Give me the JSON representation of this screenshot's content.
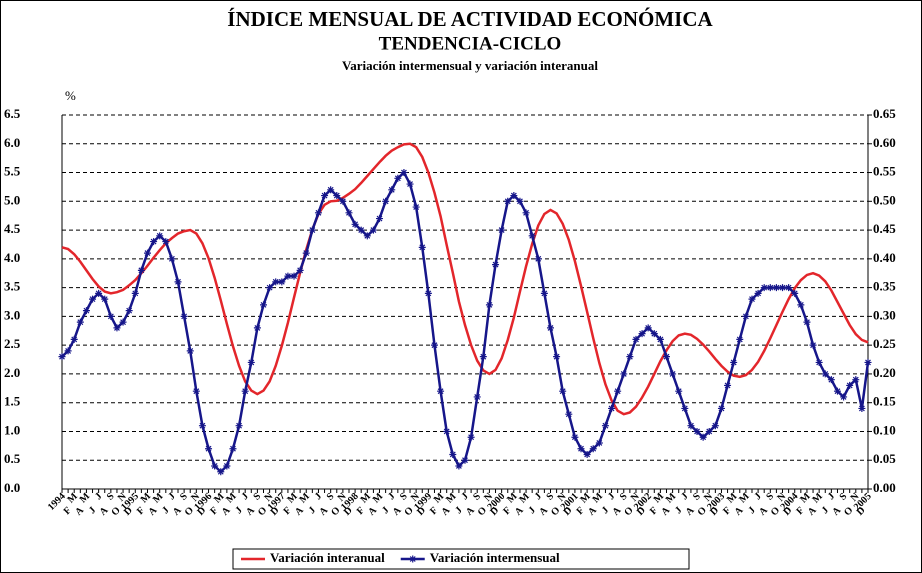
{
  "chart_data": {
    "type": "line",
    "title": "ÍNDICE MENSUAL DE ACTIVIDAD ECONÓMICA",
    "subtitle": "TENDENCIA-CICLO",
    "caption": "Variación intermensual y variación interanual",
    "ylabel": "%",
    "categories": [
      "1994",
      "F",
      "M",
      "A",
      "M",
      "J",
      "J",
      "A",
      "S",
      "O",
      "N",
      "D",
      "1995",
      "F",
      "M",
      "A",
      "M",
      "J",
      "J",
      "A",
      "S",
      "O",
      "N",
      "D",
      "1996",
      "F",
      "M",
      "A",
      "M",
      "J",
      "J",
      "A",
      "S",
      "O",
      "N",
      "D",
      "1997",
      "F",
      "M",
      "A",
      "M",
      "J",
      "J",
      "A",
      "S",
      "O",
      "N",
      "D",
      "1998",
      "F",
      "M",
      "A",
      "M",
      "J",
      "J",
      "A",
      "S",
      "O",
      "N",
      "D",
      "1999",
      "F",
      "M",
      "A",
      "M",
      "J",
      "J",
      "A",
      "S",
      "O",
      "N",
      "D",
      "2000",
      "F",
      "M",
      "A",
      "M",
      "J",
      "J",
      "A",
      "S",
      "O",
      "N",
      "D",
      "2001",
      "F",
      "M",
      "A",
      "M",
      "J",
      "J",
      "A",
      "S",
      "O",
      "N",
      "D",
      "2002",
      "F",
      "M",
      "A",
      "M",
      "J",
      "J",
      "A",
      "S",
      "O",
      "N",
      "D",
      "2003",
      "F",
      "M",
      "A",
      "M",
      "J",
      "J",
      "A",
      "S",
      "O",
      "N",
      "D",
      "2004",
      "F",
      "M",
      "A",
      "M",
      "J",
      "J",
      "A",
      "S",
      "O",
      "N",
      "D",
      "2005"
    ],
    "series": [
      {
        "name": "Variación interanual",
        "color": "#e3262b",
        "axis": "y",
        "values": [
          4.2,
          4.17,
          4.08,
          3.95,
          3.8,
          3.65,
          3.52,
          3.43,
          3.4,
          3.42,
          3.46,
          3.54,
          3.63,
          3.75,
          3.88,
          4.02,
          4.15,
          4.27,
          4.36,
          4.44,
          4.48,
          4.5,
          4.44,
          4.27,
          4.01,
          3.67,
          3.28,
          2.87,
          2.48,
          2.14,
          1.87,
          1.71,
          1.65,
          1.71,
          1.87,
          2.14,
          2.49,
          2.89,
          3.33,
          3.76,
          4.16,
          4.51,
          4.78,
          4.94,
          5.0,
          5.01,
          5.06,
          5.13,
          5.21,
          5.32,
          5.44,
          5.56,
          5.68,
          5.79,
          5.88,
          5.94,
          5.99,
          6.0,
          5.94,
          5.77,
          5.5,
          5.15,
          4.74,
          4.24,
          3.76,
          3.26,
          2.85,
          2.5,
          2.23,
          2.06,
          2.0,
          2.07,
          2.27,
          2.59,
          2.98,
          3.43,
          3.87,
          4.26,
          4.58,
          4.78,
          4.85,
          4.79,
          4.61,
          4.33,
          3.96,
          3.53,
          3.08,
          2.62,
          2.19,
          1.82,
          1.54,
          1.36,
          1.3,
          1.33,
          1.43,
          1.59,
          1.78,
          2.0,
          2.22,
          2.41,
          2.57,
          2.67,
          2.7,
          2.68,
          2.61,
          2.51,
          2.39,
          2.26,
          2.14,
          2.04,
          1.97,
          1.95,
          1.98,
          2.07,
          2.21,
          2.4,
          2.62,
          2.85,
          3.08,
          3.3,
          3.49,
          3.63,
          3.72,
          3.75,
          3.71,
          3.61,
          3.45,
          3.25,
          3.05,
          2.85,
          2.69,
          2.59,
          2.55
        ]
      },
      {
        "name": "Variación intermensual",
        "color": "#16168a",
        "axis": "y2",
        "values": [
          0.23,
          0.24,
          0.26,
          0.29,
          0.31,
          0.33,
          0.34,
          0.33,
          0.3,
          0.28,
          0.29,
          0.31,
          0.34,
          0.38,
          0.41,
          0.43,
          0.44,
          0.43,
          0.4,
          0.36,
          0.3,
          0.24,
          0.17,
          0.11,
          0.07,
          0.04,
          0.03,
          0.04,
          0.07,
          0.11,
          0.17,
          0.22,
          0.28,
          0.32,
          0.35,
          0.36,
          0.36,
          0.37,
          0.37,
          0.38,
          0.41,
          0.45,
          0.48,
          0.51,
          0.52,
          0.51,
          0.5,
          0.48,
          0.46,
          0.45,
          0.44,
          0.45,
          0.47,
          0.5,
          0.52,
          0.54,
          0.55,
          0.53,
          0.49,
          0.42,
          0.34,
          0.25,
          0.17,
          0.1,
          0.06,
          0.04,
          0.05,
          0.09,
          0.16,
          0.23,
          0.32,
          0.39,
          0.45,
          0.5,
          0.51,
          0.5,
          0.48,
          0.44,
          0.4,
          0.34,
          0.28,
          0.23,
          0.17,
          0.13,
          0.09,
          0.07,
          0.06,
          0.07,
          0.08,
          0.11,
          0.14,
          0.17,
          0.2,
          0.23,
          0.26,
          0.27,
          0.28,
          0.27,
          0.26,
          0.23,
          0.2,
          0.17,
          0.14,
          0.11,
          0.1,
          0.09,
          0.1,
          0.11,
          0.14,
          0.18,
          0.22,
          0.26,
          0.3,
          0.33,
          0.34,
          0.35,
          0.35,
          0.35,
          0.35,
          0.35,
          0.34,
          0.32,
          0.29,
          0.25,
          0.22,
          0.2,
          0.19,
          0.17,
          0.16,
          0.18,
          0.19,
          0.14,
          0.22
        ]
      }
    ],
    "ylim": [
      0,
      6.5
    ],
    "yticks": [
      {
        "value": 0,
        "label": "0.0"
      },
      0.5,
      {
        "value": 1,
        "label": "1.0"
      },
      1.5,
      {
        "value": 2,
        "label": "2.0"
      },
      2.5,
      {
        "value": 3,
        "label": "3.0"
      },
      3.5,
      {
        "value": 4,
        "label": "4.0"
      },
      4.5,
      {
        "value": 5,
        "label": "5.0"
      },
      5.5,
      {
        "value": 6,
        "label": "6.0"
      },
      6.5
    ],
    "y2lim": [
      0,
      0.65
    ],
    "y2ticks": [
      {
        "value": 0,
        "label": "0.00"
      },
      0.05,
      {
        "value": 0.1,
        "label": "0.10"
      },
      0.15,
      {
        "value": 0.2,
        "label": "0.20"
      },
      0.25,
      {
        "value": 0.3,
        "label": "0.30"
      },
      0.35,
      {
        "value": 0.4,
        "label": "0.40"
      },
      0.45,
      {
        "value": 0.5,
        "label": "0.50"
      },
      0.55,
      {
        "value": 0.6,
        "label": "0.60"
      },
      0.65
    ],
    "grid": true,
    "legend": "bottom"
  }
}
